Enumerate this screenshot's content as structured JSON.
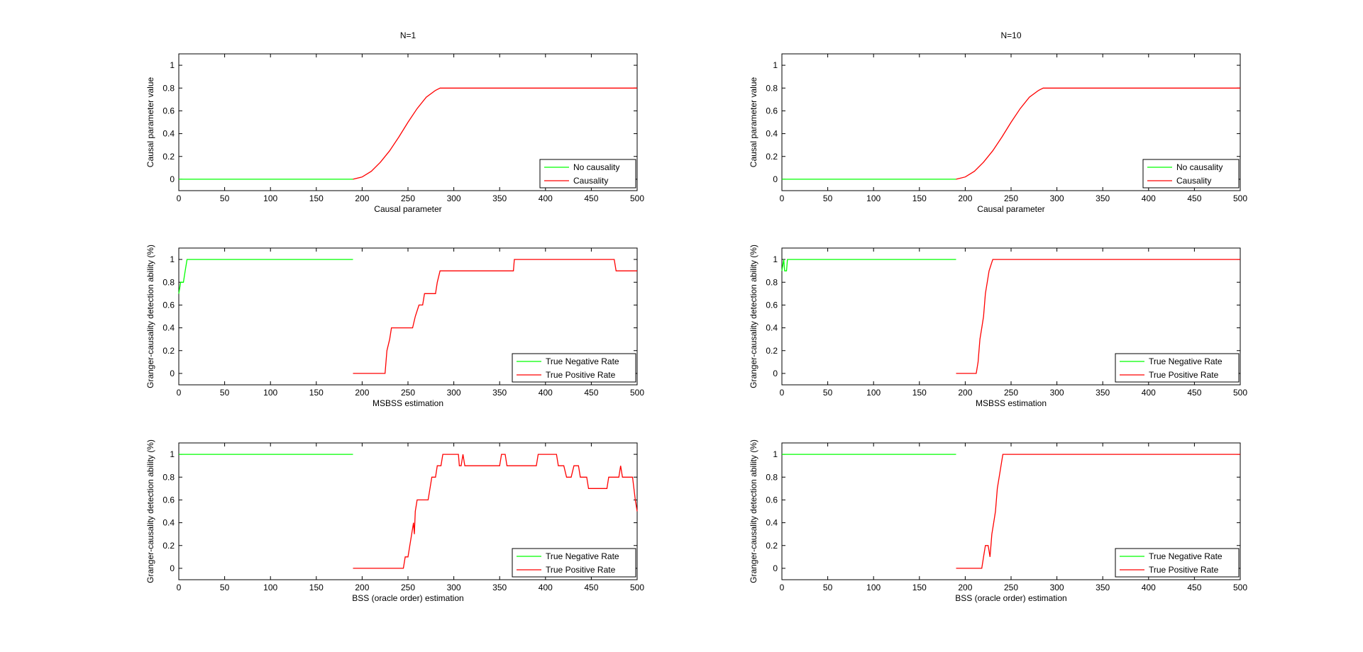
{
  "chart_data": [
    {
      "type": "line",
      "title": "N=1",
      "xlabel": "Causal parameter",
      "ylabel": "Causal parameter value",
      "xlim": [
        0,
        500
      ],
      "ylim": [
        -0.1,
        1.1
      ],
      "xticks": [
        "0",
        "50",
        "100",
        "150",
        "200",
        "250",
        "300",
        "350",
        "400",
        "450",
        "500"
      ],
      "yticks": [
        "0",
        "0.2",
        "0.4",
        "0.6",
        "0.8",
        "1"
      ],
      "grid": false,
      "legend_position": "bottom-right",
      "series": [
        {
          "name": "No causality",
          "color": "#00ff00",
          "points": [
            [
              0,
              0
            ],
            [
              190,
              0
            ]
          ]
        },
        {
          "name": "Causality",
          "color": "#ff0000",
          "points": [
            [
              190,
              0
            ],
            [
              200,
              0.02
            ],
            [
              210,
              0.07
            ],
            [
              220,
              0.15
            ],
            [
              230,
              0.25
            ],
            [
              240,
              0.37
            ],
            [
              250,
              0.5
            ],
            [
              260,
              0.62
            ],
            [
              270,
              0.72
            ],
            [
              280,
              0.78
            ],
            [
              285,
              0.8
            ],
            [
              300,
              0.8
            ],
            [
              500,
              0.8
            ]
          ]
        }
      ]
    },
    {
      "type": "line",
      "title": "N=10",
      "xlabel": "Causal parameter",
      "ylabel": "Causal parameter value",
      "xlim": [
        0,
        500
      ],
      "ylim": [
        -0.1,
        1.1
      ],
      "xticks": [
        "0",
        "50",
        "100",
        "150",
        "200",
        "250",
        "300",
        "350",
        "400",
        "450",
        "500"
      ],
      "yticks": [
        "0",
        "0.2",
        "0.4",
        "0.6",
        "0.8",
        "1"
      ],
      "grid": false,
      "legend_position": "bottom-right",
      "series": [
        {
          "name": "No causality",
          "color": "#00ff00",
          "points": [
            [
              0,
              0
            ],
            [
              190,
              0
            ]
          ]
        },
        {
          "name": "Causality",
          "color": "#ff0000",
          "points": [
            [
              190,
              0
            ],
            [
              200,
              0.02
            ],
            [
              210,
              0.07
            ],
            [
              220,
              0.15
            ],
            [
              230,
              0.25
            ],
            [
              240,
              0.37
            ],
            [
              250,
              0.5
            ],
            [
              260,
              0.62
            ],
            [
              270,
              0.72
            ],
            [
              280,
              0.78
            ],
            [
              285,
              0.8
            ],
            [
              300,
              0.8
            ],
            [
              500,
              0.8
            ]
          ]
        }
      ]
    },
    {
      "type": "line",
      "title": "",
      "xlabel": "MSBSS estimation",
      "ylabel": "Granger-causality detection ability (%)",
      "xlim": [
        0,
        500
      ],
      "ylim": [
        -0.1,
        1.1
      ],
      "xticks": [
        "0",
        "50",
        "100",
        "150",
        "200",
        "250",
        "300",
        "350",
        "400",
        "450",
        "500"
      ],
      "yticks": [
        "0",
        "0.2",
        "0.4",
        "0.6",
        "0.8",
        "1"
      ],
      "grid": false,
      "legend_position": "bottom-right",
      "series": [
        {
          "name": "True Negative Rate",
          "color": "#00ff00",
          "points": [
            [
              0,
              0.7
            ],
            [
              2,
              0.8
            ],
            [
              5,
              0.8
            ],
            [
              7,
              0.9
            ],
            [
              9,
              1
            ],
            [
              190,
              1
            ]
          ]
        },
        {
          "name": "True Positive Rate",
          "color": "#ff0000",
          "points": [
            [
              190,
              0
            ],
            [
              225,
              0
            ],
            [
              227,
              0.2
            ],
            [
              230,
              0.3
            ],
            [
              232,
              0.4
            ],
            [
              255,
              0.4
            ],
            [
              258,
              0.5
            ],
            [
              262,
              0.6
            ],
            [
              266,
              0.6
            ],
            [
              268,
              0.7
            ],
            [
              280,
              0.7
            ],
            [
              282,
              0.8
            ],
            [
              285,
              0.9
            ],
            [
              365,
              0.9
            ],
            [
              366,
              1
            ],
            [
              475,
              1
            ],
            [
              477,
              0.9
            ],
            [
              500,
              0.9
            ]
          ]
        }
      ]
    },
    {
      "type": "line",
      "title": "",
      "xlabel": "MSBSS estimation",
      "ylabel": "Granger-causality detection ability (%)",
      "xlim": [
        0,
        500
      ],
      "ylim": [
        -0.1,
        1.1
      ],
      "xticks": [
        "0",
        "50",
        "100",
        "150",
        "200",
        "250",
        "300",
        "350",
        "400",
        "450",
        "500"
      ],
      "yticks": [
        "0",
        "0.2",
        "0.4",
        "0.6",
        "0.8",
        "1"
      ],
      "grid": false,
      "legend_position": "bottom-right",
      "series": [
        {
          "name": "True Negative Rate",
          "color": "#00ff00",
          "points": [
            [
              0,
              0.9
            ],
            [
              2,
              1
            ],
            [
              3,
              0.9
            ],
            [
              5,
              0.9
            ],
            [
              6,
              1
            ],
            [
              190,
              1
            ]
          ]
        },
        {
          "name": "True Positive Rate",
          "color": "#ff0000",
          "points": [
            [
              190,
              0
            ],
            [
              212,
              0
            ],
            [
              214,
              0.1
            ],
            [
              216,
              0.3
            ],
            [
              218,
              0.4
            ],
            [
              220,
              0.5
            ],
            [
              222,
              0.7
            ],
            [
              224,
              0.8
            ],
            [
              226,
              0.9
            ],
            [
              228,
              0.95
            ],
            [
              230,
              1
            ],
            [
              500,
              1
            ]
          ]
        }
      ]
    },
    {
      "type": "line",
      "title": "",
      "xlabel": "BSS (oracle order) estimation",
      "ylabel": "Granger-causality detection ability (%)",
      "xlim": [
        0,
        500
      ],
      "ylim": [
        -0.1,
        1.1
      ],
      "xticks": [
        "0",
        "50",
        "100",
        "150",
        "200",
        "250",
        "300",
        "350",
        "400",
        "450",
        "500"
      ],
      "yticks": [
        "0",
        "0.2",
        "0.4",
        "0.6",
        "0.8",
        "1"
      ],
      "grid": false,
      "legend_position": "bottom-right",
      "series": [
        {
          "name": "True Negative Rate",
          "color": "#00ff00",
          "points": [
            [
              0,
              1
            ],
            [
              190,
              1
            ]
          ]
        },
        {
          "name": "True Positive Rate",
          "color": "#ff0000",
          "points": [
            [
              190,
              0
            ],
            [
              245,
              0
            ],
            [
              247,
              0.1
            ],
            [
              250,
              0.1
            ],
            [
              252,
              0.2
            ],
            [
              254,
              0.3
            ],
            [
              256,
              0.4
            ],
            [
              257,
              0.3
            ],
            [
              258,
              0.5
            ],
            [
              260,
              0.6
            ],
            [
              272,
              0.6
            ],
            [
              274,
              0.7
            ],
            [
              276,
              0.8
            ],
            [
              280,
              0.8
            ],
            [
              282,
              0.9
            ],
            [
              286,
              0.9
            ],
            [
              288,
              1
            ],
            [
              305,
              1
            ],
            [
              306,
              0.9
            ],
            [
              308,
              0.9
            ],
            [
              310,
              1
            ],
            [
              312,
              0.9
            ],
            [
              350,
              0.9
            ],
            [
              352,
              1
            ],
            [
              356,
              1
            ],
            [
              358,
              0.9
            ],
            [
              390,
              0.9
            ],
            [
              392,
              1
            ],
            [
              412,
              1
            ],
            [
              414,
              0.9
            ],
            [
              420,
              0.9
            ],
            [
              423,
              0.8
            ],
            [
              428,
              0.8
            ],
            [
              431,
              0.9
            ],
            [
              436,
              0.9
            ],
            [
              438,
              0.8
            ],
            [
              445,
              0.8
            ],
            [
              447,
              0.7
            ],
            [
              467,
              0.7
            ],
            [
              469,
              0.8
            ],
            [
              480,
              0.8
            ],
            [
              482,
              0.9
            ],
            [
              484,
              0.8
            ],
            [
              495,
              0.8
            ],
            [
              498,
              0.6
            ],
            [
              500,
              0.5
            ]
          ]
        }
      ]
    },
    {
      "type": "line",
      "title": "",
      "xlabel": "BSS (oracle order) estimation",
      "ylabel": "Granger-causality detection ability (%)",
      "xlim": [
        0,
        500
      ],
      "ylim": [
        -0.1,
        1.1
      ],
      "xticks": [
        "0",
        "50",
        "100",
        "150",
        "200",
        "250",
        "300",
        "350",
        "400",
        "450",
        "500"
      ],
      "yticks": [
        "0",
        "0.2",
        "0.4",
        "0.6",
        "0.8",
        "1"
      ],
      "grid": false,
      "legend_position": "bottom-right",
      "series": [
        {
          "name": "True Negative Rate",
          "color": "#00ff00",
          "points": [
            [
              0,
              1
            ],
            [
              190,
              1
            ]
          ]
        },
        {
          "name": "True Positive Rate",
          "color": "#ff0000",
          "points": [
            [
              190,
              0
            ],
            [
              218,
              0
            ],
            [
              220,
              0.1
            ],
            [
              222,
              0.2
            ],
            [
              225,
              0.2
            ],
            [
              227,
              0.1
            ],
            [
              229,
              0.3
            ],
            [
              231,
              0.4
            ],
            [
              233,
              0.5
            ],
            [
              235,
              0.7
            ],
            [
              237,
              0.8
            ],
            [
              239,
              0.9
            ],
            [
              241,
              1
            ],
            [
              500,
              1
            ]
          ]
        }
      ]
    }
  ]
}
